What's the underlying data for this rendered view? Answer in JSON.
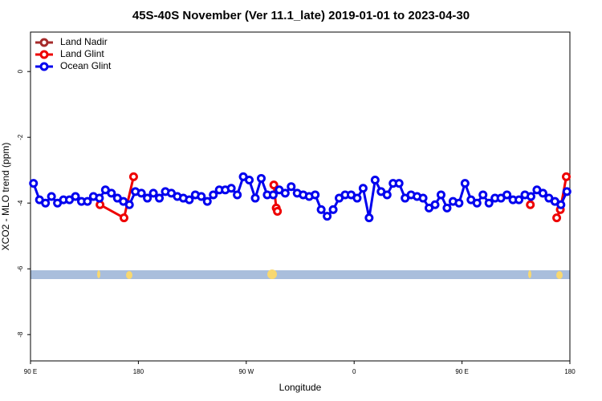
{
  "chart_data": {
    "type": "line",
    "title": "45S-40S November (Ver 11.1_late)   2019-01-01 to 2023-04-30",
    "x_label": "Longitude",
    "y_label": "XCO2 - MLO trend (ppm)",
    "xlim": [
      90,
      540
    ],
    "ylim": [
      -8.8,
      1.2
    ],
    "xticks": [
      {
        "value": 90,
        "label": "90 E"
      },
      180,
      {
        "value": 270,
        "label": "90 W"
      },
      {
        "value": 360,
        "label": "0"
      },
      {
        "value": 450,
        "label": "90 E"
      },
      {
        "value": 540,
        "label": "180"
      }
    ],
    "yticks": [
      0,
      -2,
      -4,
      -6,
      -8
    ],
    "legend": "top-left",
    "series": [
      {
        "name": "Land Nadir",
        "color": "#a52a2a",
        "x": [],
        "values": []
      },
      {
        "name": "Land Glint",
        "color": "#ee0000",
        "x": [
          148,
          168,
          176,
          null,
          293,
          295,
          296,
          null,
          507,
          null,
          529,
          532,
          537
        ],
        "values": [
          -4.05,
          -4.45,
          -3.2,
          null,
          -3.45,
          -4.15,
          -4.25,
          null,
          -4.05,
          null,
          -4.45,
          -4.2,
          -3.2
        ]
      },
      {
        "name": "Ocean Glint",
        "color": "#0000ee",
        "x": [
          92.5,
          97.5,
          102.5,
          107.5,
          112.5,
          117.5,
          122.5,
          127.5,
          132.5,
          137.5,
          142.5,
          147.5,
          152.5,
          157.5,
          162.5,
          167.5,
          172.5,
          177.5,
          182.5,
          187.5,
          192.5,
          197.5,
          202.5,
          207.5,
          212.5,
          217.5,
          222.5,
          227.5,
          232.5,
          237.5,
          242.5,
          247.5,
          252.5,
          257.5,
          262.5,
          267.5,
          272.5,
          277.5,
          282.5,
          287.5,
          292.5,
          297.5,
          302.5,
          307.5,
          312.5,
          317.5,
          322.5,
          327.5,
          332.5,
          337.5,
          342.5,
          347.5,
          352.5,
          357.5,
          362.5,
          367.5,
          372.5,
          377.5,
          382.5,
          387.5,
          392.5,
          397.5,
          402.5,
          407.5,
          412.5,
          417.5,
          422.5,
          427.5,
          432.5,
          437.5,
          442.5,
          447.5,
          452.5,
          457.5,
          462.5,
          467.5,
          472.5,
          477.5,
          482.5,
          487.5,
          492.5,
          497.5,
          502.5,
          507.5,
          512.5,
          517.5,
          522.5,
          527.5,
          532.5,
          537.5
        ],
        "values": [
          -3.4,
          -3.9,
          -4.0,
          -3.8,
          -4.0,
          -3.9,
          -3.9,
          -3.8,
          -3.95,
          -3.95,
          -3.8,
          -3.85,
          -3.6,
          -3.7,
          -3.85,
          -3.95,
          -4.05,
          -3.65,
          -3.7,
          -3.85,
          -3.7,
          -3.85,
          -3.65,
          -3.7,
          -3.8,
          -3.85,
          -3.9,
          -3.75,
          -3.8,
          -3.95,
          -3.75,
          -3.6,
          -3.6,
          -3.55,
          -3.75,
          -3.2,
          -3.3,
          -3.85,
          -3.25,
          -3.75,
          -3.75,
          -3.6,
          -3.7,
          -3.5,
          -3.7,
          -3.75,
          -3.8,
          -3.75,
          -4.2,
          -4.4,
          -4.2,
          -3.85,
          -3.75,
          -3.75,
          -3.85,
          -3.55,
          -4.45,
          -3.3,
          -3.65,
          -3.75,
          -3.4,
          -3.4,
          -3.85,
          -3.75,
          -3.8,
          -3.85,
          -4.15,
          -4.05,
          -3.75,
          -4.15,
          -3.95,
          -4.0,
          -3.4,
          -3.9,
          -4.0,
          -3.75,
          -4.0,
          -3.85,
          -3.85,
          -3.75,
          -3.9,
          -3.9,
          -3.75,
          -3.8,
          -3.6,
          -3.7,
          -3.85,
          -3.95,
          -4.05,
          -3.65
        ]
      }
    ]
  }
}
